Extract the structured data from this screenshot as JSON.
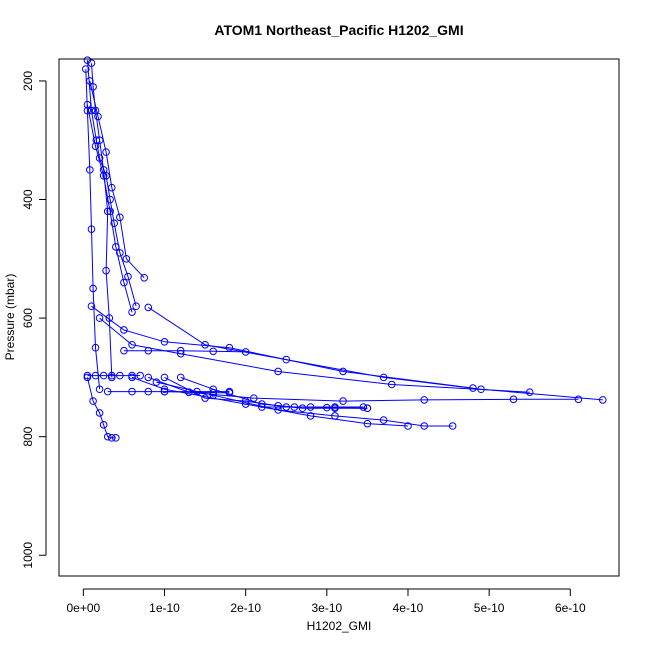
{
  "chart_data": {
    "type": "line",
    "title": "ATOM1 Northeast_Pacific H1202_GMI",
    "xlabel": "H1202_GMI",
    "ylabel": "Pressure (mbar)",
    "xlim": [
      -3e-11,
      6.6e-10
    ],
    "ylim": [
      1035,
      163
    ],
    "y_reversed": true,
    "grid": false,
    "x_ticks": [
      0,
      1e-10,
      2e-10,
      3e-10,
      4e-10,
      5e-10,
      6e-10
    ],
    "x_tick_labels": [
      "0e+00",
      "1e-10",
      "2e-10",
      "3e-10",
      "4e-10",
      "5e-10",
      "6e-10"
    ],
    "y_ticks": [
      200,
      400,
      600,
      800,
      1000
    ],
    "y_tick_labels": [
      "200",
      "400",
      "600",
      "800",
      "1000"
    ],
    "series_color": "#0000ff",
    "marker": "open-circle",
    "series": [
      {
        "x": [
          1e-11,
          1.2e-11,
          1.5e-11,
          2e-11,
          2.5e-11,
          3e-11,
          2.8e-11,
          3.2e-11,
          3.5e-11
        ],
        "y": [
          170,
          210,
          250,
          300,
          350,
          420,
          520,
          600,
          700
        ]
      },
      {
        "x": [
          5e-12,
          1e-11,
          1.6e-11,
          2e-11,
          2.8e-11,
          3.3e-11,
          3.8e-11,
          4.5e-11,
          5.5e-11,
          6.5e-11
        ],
        "y": [
          165,
          250,
          300,
          330,
          360,
          400,
          440,
          490,
          530,
          580
        ]
      },
      {
        "x": [
          8e-12,
          1.8e-11,
          2.8e-11,
          3.5e-11,
          4.5e-11,
          5.3e-11,
          7.5e-11
        ],
        "y": [
          200,
          260,
          320,
          380,
          430,
          500,
          532
        ]
      },
      {
        "x": [
          5e-12,
          1.5e-11,
          2.5e-11,
          3.3e-11,
          4e-11,
          5e-11,
          6e-11
        ],
        "y": [
          240,
          310,
          360,
          420,
          480,
          540,
          590
        ]
      },
      {
        "x": [
          3e-12,
          5e-12,
          8e-12,
          1e-11,
          1.2e-11,
          1.5e-11,
          2e-11
        ],
        "y": [
          180,
          250,
          350,
          450,
          550,
          650,
          720
        ]
      },
      {
        "x": [
          1e-11,
          5e-11,
          1e-10,
          1.8e-10,
          3.2e-10,
          4.8e-10
        ],
        "y": [
          580,
          620,
          640,
          650,
          690,
          718
        ]
      },
      {
        "x": [
          2e-11,
          6e-11,
          1.2e-10,
          2.4e-10,
          3.8e-10,
          5.5e-10
        ],
        "y": [
          600,
          645,
          660,
          690,
          712,
          725
        ]
      },
      {
        "x": [
          8e-11,
          1.5e-10,
          2.5e-10,
          3.7e-10,
          4.9e-10,
          6.4e-10
        ],
        "y": [
          582,
          645,
          670,
          700,
          720,
          738
        ]
      },
      {
        "x": [
          5e-11,
          8e-11,
          1.2e-10,
          1.6e-10,
          2e-10
        ],
        "y": [
          655,
          655,
          655,
          656,
          657
        ]
      },
      {
        "x": [
          8e-11,
          1.3e-10,
          2.1e-10,
          3.2e-10,
          4.2e-10,
          5.3e-10,
          6.1e-10
        ],
        "y": [
          700,
          725,
          735,
          740,
          738,
          737,
          737
        ]
      },
      {
        "x": [
          1e-10,
          1.3e-10,
          1.6e-10,
          1.8e-10
        ],
        "y": [
          724,
          725,
          726,
          726
        ]
      },
      {
        "x": [
          1.2e-10,
          1.6e-10,
          2.2e-10,
          2.6e-10,
          3e-10,
          3.5e-10
        ],
        "y": [
          700,
          720,
          745,
          750,
          751,
          752
        ]
      },
      {
        "x": [
          1e-10,
          1.5e-10,
          2e-10,
          2.4e-10,
          2.7e-10,
          3.1e-10,
          3.5e-10
        ],
        "y": [
          700,
          735,
          740,
          748,
          752,
          752,
          752
        ]
      },
      {
        "x": [
          9e-11,
          1.6e-10,
          2.4e-10,
          3.1e-10,
          3.7e-10,
          4.2e-10,
          4.55e-10
        ],
        "y": [
          708,
          730,
          755,
          765,
          772,
          782,
          782
        ]
      },
      {
        "x": [
          6e-11,
          1e-10,
          2e-10,
          2.8e-10,
          3.5e-10,
          4e-10
        ],
        "y": [
          700,
          720,
          745,
          765,
          778,
          782
        ]
      },
      {
        "x": [
          5e-12,
          1.2e-11,
          2e-11,
          2.5e-11,
          3e-11,
          3.5e-11,
          4e-11
        ],
        "y": [
          700,
          740,
          760,
          780,
          800,
          802,
          802
        ]
      },
      {
        "x": [
          5e-12,
          1.5e-11,
          2.5e-11,
          3.5e-11,
          4.5e-11,
          6e-11,
          7e-11
        ],
        "y": [
          697,
          697,
          697,
          697,
          697,
          697,
          697
        ]
      },
      {
        "x": [
          3e-11,
          6e-11,
          8e-11,
          1e-10,
          1.4e-10,
          1.8e-10
        ],
        "y": [
          724,
          724,
          724,
          724,
          724,
          724
        ]
      },
      {
        "x": [
          2.2e-10,
          2.5e-10,
          2.8e-10,
          3.1e-10,
          3.45e-10
        ],
        "y": [
          750,
          750,
          750,
          750,
          750
        ]
      }
    ]
  }
}
